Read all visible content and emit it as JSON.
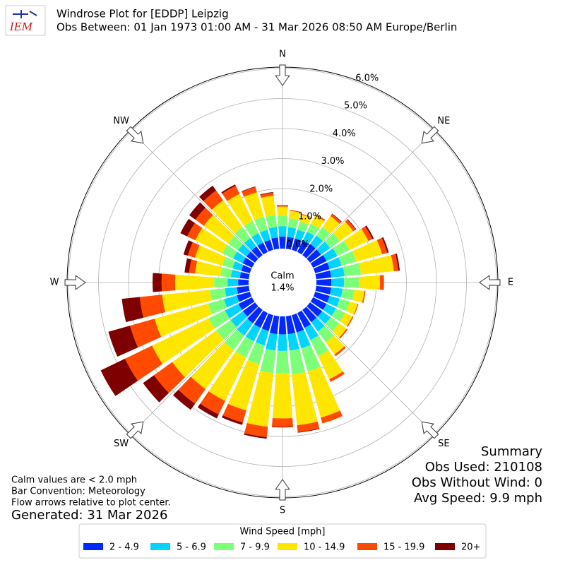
{
  "logo": "IEM",
  "chart_data": {
    "type": "windrose",
    "title": "Windrose Plot for [EDDP] Leipzig",
    "subtitle": "Obs Between: 01 Jan 1973 01:00 AM - 31 Mar 2026 08:50 AM Europe/Berlin",
    "compass": [
      "N",
      "NE",
      "E",
      "SE",
      "S",
      "SW",
      "W",
      "NW"
    ],
    "calm_label": "Calm",
    "calm_value": "1.4%",
    "directions": [
      0,
      10,
      20,
      30,
      40,
      50,
      60,
      70,
      80,
      90,
      100,
      110,
      120,
      130,
      140,
      150,
      160,
      170,
      180,
      190,
      200,
      210,
      220,
      230,
      240,
      250,
      260,
      270,
      280,
      290,
      300,
      310,
      320,
      330,
      340,
      350
    ],
    "ylim": [
      0,
      6.0
    ],
    "yticks": [
      {
        "value": 0,
        "label": "0.0%"
      },
      {
        "value": 1,
        "label": "1.0%"
      },
      {
        "value": 2,
        "label": "2.0%"
      },
      {
        "value": 3,
        "label": "3.0%"
      },
      {
        "value": 4,
        "label": "4.0%"
      },
      {
        "value": 5,
        "label": "5.0%"
      },
      {
        "value": 6,
        "label": "6.0%"
      }
    ],
    "grid": true,
    "legend_title": "Wind Speed [mph]",
    "series": [
      {
        "name": "2 - 4.9",
        "color": "#0028ff",
        "values": [
          0.4,
          0.4,
          0.4,
          0.42,
          0.45,
          0.45,
          0.5,
          0.5,
          0.5,
          0.5,
          0.5,
          0.5,
          0.5,
          0.5,
          0.5,
          0.55,
          0.6,
          0.6,
          0.6,
          0.6,
          0.55,
          0.55,
          0.55,
          0.5,
          0.5,
          0.45,
          0.4,
          0.35,
          0.3,
          0.3,
          0.35,
          0.35,
          0.35,
          0.35,
          0.35,
          0.38
        ]
      },
      {
        "name": "5 - 6.9",
        "color": "#00d4ff",
        "values": [
          0.35,
          0.32,
          0.3,
          0.33,
          0.35,
          0.38,
          0.4,
          0.42,
          0.45,
          0.42,
          0.38,
          0.35,
          0.35,
          0.35,
          0.38,
          0.45,
          0.55,
          0.55,
          0.55,
          0.55,
          0.5,
          0.5,
          0.5,
          0.5,
          0.5,
          0.45,
          0.4,
          0.35,
          0.3,
          0.3,
          0.35,
          0.35,
          0.35,
          0.35,
          0.35,
          0.35
        ]
      },
      {
        "name": "7 - 9.9",
        "color": "#7dff7a",
        "values": [
          0.35,
          0.3,
          0.28,
          0.3,
          0.35,
          0.4,
          0.45,
          0.5,
          0.55,
          0.5,
          0.4,
          0.35,
          0.33,
          0.35,
          0.45,
          0.6,
          0.8,
          0.8,
          0.75,
          0.75,
          0.65,
          0.6,
          0.6,
          0.6,
          0.6,
          0.55,
          0.5,
          0.45,
          0.35,
          0.35,
          0.4,
          0.4,
          0.45,
          0.45,
          0.45,
          0.4
        ]
      },
      {
        "name": "10 - 14.9",
        "color": "#ffe600",
        "values": [
          0.3,
          0.25,
          0.24,
          0.3,
          0.45,
          0.55,
          0.7,
          0.9,
          1.1,
          0.7,
          0.33,
          0.27,
          0.28,
          0.3,
          0.5,
          0.85,
          1.6,
          1.7,
          1.5,
          1.8,
          1.6,
          1.6,
          1.6,
          1.8,
          2.1,
          1.85,
          1.6,
          1.3,
          0.85,
          0.95,
          1.0,
          1.0,
          1.1,
          1.0,
          0.85,
          0.65
        ]
      },
      {
        "name": "15 - 19.9",
        "color": "#ff4a00",
        "values": [
          0.04,
          0.03,
          0.03,
          0.05,
          0.08,
          0.1,
          0.15,
          0.18,
          0.15,
          0.12,
          0.04,
          0.03,
          0.04,
          0.05,
          0.07,
          0.1,
          0.2,
          0.23,
          0.28,
          0.35,
          0.42,
          0.5,
          0.6,
          0.75,
          1.0,
          0.85,
          0.75,
          0.45,
          0.2,
          0.25,
          0.3,
          0.35,
          0.4,
          0.3,
          0.18,
          0.1
        ]
      },
      {
        "name": "20+",
        "color": "#7f0000",
        "values": [
          0.01,
          0,
          0,
          0,
          0.02,
          0.02,
          0.05,
          0.05,
          0.05,
          0.01,
          0,
          0,
          0,
          0,
          0,
          0,
          0,
          0.02,
          0.02,
          0.05,
          0.08,
          0.15,
          0.25,
          0.45,
          0.9,
          0.75,
          0.6,
          0.3,
          0.15,
          0.15,
          0.25,
          0.25,
          0.2,
          0.05,
          0.02,
          0.02
        ]
      }
    ],
    "notes": [
      "Calm values are < 2.0 mph",
      "Bar Convention: Meteorology",
      "Flow arrows relative to plot center."
    ],
    "generated": "Generated: 31 Mar 2026",
    "summary": [
      "Summary",
      "Obs Used: 210108",
      "Obs Without Wind: 0",
      "Avg Speed: 9.9 mph"
    ]
  }
}
